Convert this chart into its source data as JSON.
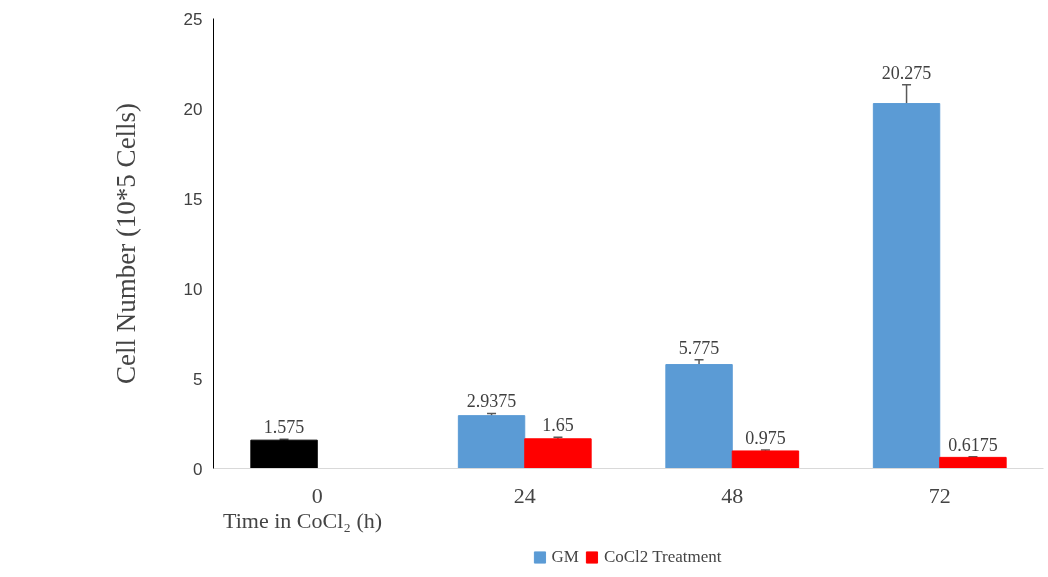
{
  "chart_data": {
    "type": "bar",
    "xlabel": "Time in CoCl₂ (h)",
    "ylabel": "Cell Number (10*5 Cells)",
    "categories": [
      "0",
      "24",
      "48",
      "72"
    ],
    "series": [
      {
        "name": "GM",
        "color": "#5b9bd5",
        "colors": [
          "#000000",
          "#5b9bd5",
          "#5b9bd5",
          "#5b9bd5"
        ],
        "values": [
          1.575,
          2.9375,
          5.775,
          20.275
        ],
        "errors": [
          0.05,
          0.12,
          0.27,
          1.05
        ]
      },
      {
        "name": "CoCl2 Treatment",
        "color": "#ff0000",
        "values": [
          null,
          1.65,
          0.975,
          0.6175
        ],
        "errors": [
          null,
          0.08,
          0.05,
          0.04
        ]
      }
    ],
    "ylim": [
      0,
      25
    ],
    "yticks": [
      0,
      5,
      10,
      15,
      20,
      25
    ],
    "data_labels": true,
    "grid": false,
    "legend": "bottom"
  }
}
